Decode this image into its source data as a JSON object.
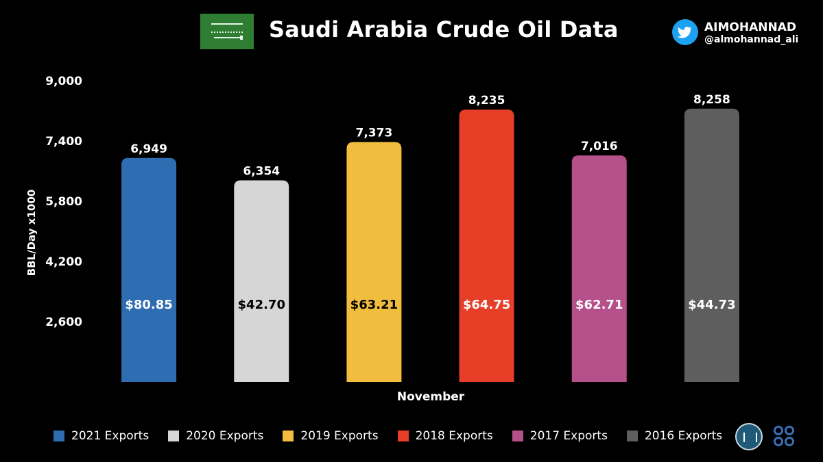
{
  "header": {
    "title": "Saudi Arabia Crude Oil Data",
    "flag_icon": "saudi-flag-icon",
    "author_name": "AIMOHANNAD",
    "author_handle": "@almohannad_ali",
    "social_icon": "twitter-icon"
  },
  "chart_data": {
    "type": "bar",
    "title": "Saudi Arabia Crude Oil Data",
    "xlabel": "November",
    "ylabel": "BBL/Day x1000",
    "ylim": [
      1000,
      9000
    ],
    "yticks": [
      "9,000",
      "7,400",
      "5,800",
      "4,200",
      "2,600"
    ],
    "ytick_values": [
      9000,
      7400,
      5800,
      4200,
      2600
    ],
    "grid": false,
    "legend_position": "bottom",
    "series": [
      {
        "name": "2021 Exports",
        "value": 6949,
        "value_label": "6,949",
        "price": "$80.85",
        "color": "#2f6db3",
        "price_color": "#ffffff"
      },
      {
        "name": "2020 Exports",
        "value": 6354,
        "value_label": "6,354",
        "price": "$42.70",
        "color": "#d6d6d6",
        "price_color": "#000000"
      },
      {
        "name": "2019 Exports",
        "value": 7373,
        "value_label": "7,373",
        "price": "$63.21",
        "color": "#f0bd3f",
        "price_color": "#000000"
      },
      {
        "name": "2018 Exports",
        "value": 8235,
        "value_label": "8,235",
        "price": "$64.75",
        "color": "#e63e27",
        "price_color": "#ffffff"
      },
      {
        "name": "2017 Exports",
        "value": 7016,
        "value_label": "7,016",
        "price": "$62.71",
        "color": "#b5508a",
        "price_color": "#ffffff"
      },
      {
        "name": "2016 Exports",
        "value": 8258,
        "value_label": "8,258",
        "price": "$44.73",
        "color": "#5e5e5e",
        "price_color": "#ffffff"
      }
    ]
  },
  "footer": {
    "logo_left": "energy-ministry-logo",
    "logo_right": "opec-logo"
  }
}
